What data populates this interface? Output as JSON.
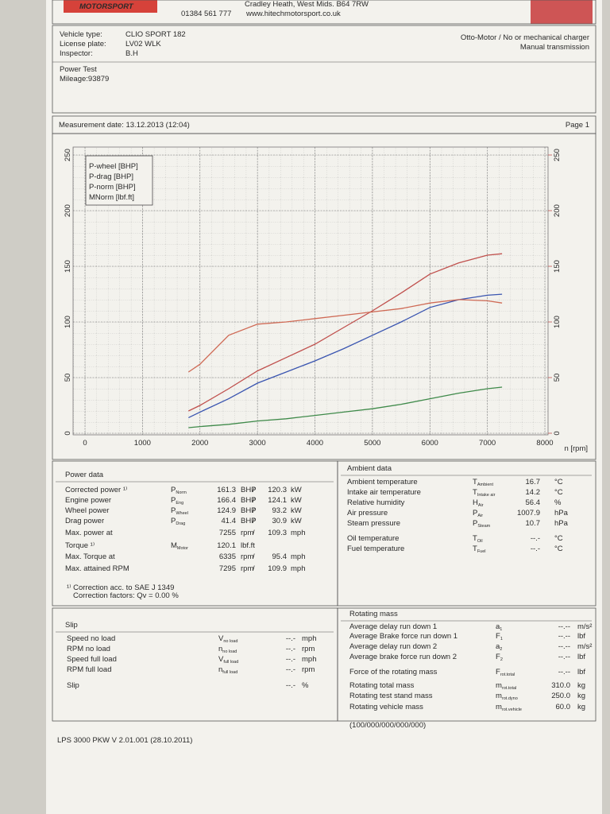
{
  "header": {
    "logo": "MOTORSPORT",
    "address": "Cradley Heath, West Mids. B64 7RW",
    "phone": "01384 561 777",
    "web": "www.hitechmotorsport.co.uk"
  },
  "vehicle": {
    "fields": [
      {
        "label": "Vehicle type:",
        "value": "CLIO SPORT 182"
      },
      {
        "label": "License plate:",
        "value": "LV02 WLK"
      },
      {
        "label": "Inspector:",
        "value": "B.H"
      }
    ],
    "engine": "Otto-Motor / No or mechanical charger",
    "transmission": "Manual transmission",
    "test": "Power Test",
    "mileage": "Mileage:93879"
  },
  "measurement": {
    "date": "Measurement date: 13.12.2013 (12:04)",
    "page": "Page 1"
  },
  "chart_data": {
    "type": "line",
    "x": [
      1800,
      2000,
      2500,
      3000,
      3500,
      4000,
      4500,
      5000,
      5500,
      6000,
      6500,
      7000,
      7255
    ],
    "xlim": [
      0,
      8000
    ],
    "xticks": [
      0,
      1000,
      2000,
      3000,
      4000,
      5000,
      6000,
      7000,
      8000
    ],
    "xlabel": "n [rpm]",
    "ylim": [
      0,
      250
    ],
    "yticks": [
      0,
      50,
      100,
      150,
      200,
      250
    ],
    "y2lim": [
      0,
      250
    ],
    "y2ticks": [
      0,
      50,
      100,
      150,
      200,
      250
    ],
    "y2color": "#c0504d",
    "grid": true,
    "legend": "upper left",
    "series": [
      {
        "name": "P-wheel [BHP]",
        "color": "#3a55b0",
        "values": [
          14,
          19,
          31,
          45,
          55,
          65,
          76,
          88,
          100,
          113,
          120,
          124,
          124.9
        ]
      },
      {
        "name": "P-drag [BHP]",
        "color": "#3f8a4a",
        "values": [
          5,
          6,
          8,
          11,
          13,
          16,
          19,
          22,
          26,
          31,
          36,
          40,
          41.4
        ]
      },
      {
        "name": "P-norm [BHP]",
        "color": "#c0504d",
        "values": [
          20,
          25,
          40,
          56,
          68,
          80,
          95,
          110,
          126,
          143,
          153,
          160,
          161.3
        ]
      },
      {
        "name": "MNorm [lbf.ft]",
        "color": "#cf6a55",
        "axis": "y2",
        "values": [
          55,
          62,
          88,
          98,
          100,
          103,
          106,
          109,
          112,
          117,
          120.1,
          119,
          117
        ]
      }
    ]
  },
  "power_data": {
    "title": "Power data",
    "separator": "/",
    "rows": [
      {
        "label": "Corrected power ¹⁾",
        "sym": "P",
        "sub": "Norm",
        "v1": "161.3",
        "u1": "BHP",
        "v2": "120.3",
        "u2": "kW",
        "color": "#c0392b"
      },
      {
        "label": "Engine power",
        "sym": "P",
        "sub": "Eng",
        "v1": "166.4",
        "u1": "BHP",
        "v2": "124.1",
        "u2": "kW",
        "color": "#c0392b"
      },
      {
        "label": "Wheel power",
        "sym": "P",
        "sub": "Wheel",
        "v1": "124.9",
        "u1": "BHP",
        "v2": "93.2",
        "u2": "kW",
        "color": "#2f4fa8"
      },
      {
        "label": "Drag power",
        "sym": "P",
        "sub": "Drag",
        "v1": "41.4",
        "u1": "BHP",
        "v2": "30.9",
        "u2": "kW",
        "color": "#2f7d3e"
      },
      {
        "label": "Max. power at",
        "v1": "7255",
        "u1": "rpm",
        "v2": "109.3",
        "u2": "mph"
      },
      {
        "label": "Torque ¹⁾",
        "sym": "M",
        "sub": "Motor",
        "v1": "120.1",
        "u1": "lbf.ft",
        "color": "#c0392b"
      },
      {
        "label": "Max. Torque at",
        "v1": "6335",
        "u1": "rpm",
        "v2": "95.4",
        "u2": "mph"
      },
      {
        "label": "Max. attained RPM",
        "v1": "7295",
        "u1": "rpm",
        "v2": "109.9",
        "u2": "mph"
      }
    ],
    "note": "¹⁾ Correction acc. to SAE J 1349",
    "factors": "Correction factors: Qv = 0.00 %"
  },
  "ambient_data": {
    "title": "Ambient data",
    "rows": [
      {
        "label": "Ambient temperature",
        "sym": "T",
        "sub": "Ambient",
        "v1": "16.7",
        "u1": "°C"
      },
      {
        "label": "Intake air temperature",
        "sym": "T",
        "sub": "Intake air",
        "v1": "14.2",
        "u1": "°C"
      },
      {
        "label": "Relative humidity",
        "sym": "H",
        "sub": "Air",
        "v1": "56.4",
        "u1": "%"
      },
      {
        "label": "Air pressure",
        "sym": "P",
        "sub": "Air",
        "v1": "1007.9",
        "u1": "hPa"
      },
      {
        "label": "Steam pressure",
        "sym": "P",
        "sub": "Steam",
        "v1": "10.7",
        "u1": "hPa"
      },
      {
        "label": "Oil temperature",
        "sym": "T",
        "sub": "Oil",
        "v1": "--.-",
        "u1": "°C"
      },
      {
        "label": "Fuel temperature",
        "sym": "T",
        "sub": "Fuel",
        "v1": "--.-",
        "u1": "°C"
      }
    ]
  },
  "slip": {
    "title": "Slip",
    "rows": [
      {
        "label": "Speed no load",
        "sym": "V",
        "sub": "no load",
        "v1": "--.-",
        "u1": "mph"
      },
      {
        "label": "RPM no load",
        "sym": "n",
        "sub": "no load",
        "v1": "--.-",
        "u1": "rpm"
      },
      {
        "label": "Speed full load",
        "sym": "V",
        "sub": "full load",
        "v1": "--.-",
        "u1": "mph"
      },
      {
        "label": "RPM full load",
        "sym": "n",
        "sub": "full load",
        "v1": "--.-",
        "u1": "rpm"
      },
      {
        "label": "Slip",
        "v1": "--.-",
        "u1": "%"
      }
    ]
  },
  "rotating_mass": {
    "title": "Rotating mass",
    "rows": [
      {
        "label": "Average delay run down 1",
        "sym": "a",
        "sub": "1",
        "v1": "--.--",
        "u1": "m/s²"
      },
      {
        "label": "Average Brake force run down 1",
        "sym": "F",
        "sub": "1",
        "v1": "--.--",
        "u1": "lbf"
      },
      {
        "label": "Average delay run down 2",
        "sym": "a",
        "sub": "2",
        "v1": "--.--",
        "u1": "m/s²"
      },
      {
        "label": "Average brake force run down 2",
        "sym": "F",
        "sub": "2",
        "v1": "--.--",
        "u1": "lbf"
      },
      {
        "label": "Force of the rotating mass",
        "sym": "F",
        "sub": "rot.total",
        "v1": "--.--",
        "u1": "lbf"
      },
      {
        "label": "Rotating total mass",
        "sym": "m",
        "sub": "rot.total",
        "v1": "310.0",
        "u1": "kg"
      },
      {
        "label": "Rotating test stand mass",
        "sym": "m",
        "sub": "rot.dyno",
        "v1": "250.0",
        "u1": "kg"
      },
      {
        "label": "Rotating vehicle mass",
        "sym": "m",
        "sub": "rot.vehicle",
        "v1": "60.0",
        "u1": "kg"
      }
    ],
    "code": "(100/000/000/000/000)"
  },
  "footer": {
    "version": "LPS 3000 PKW V 2.01.001 (28.10.2011)"
  }
}
